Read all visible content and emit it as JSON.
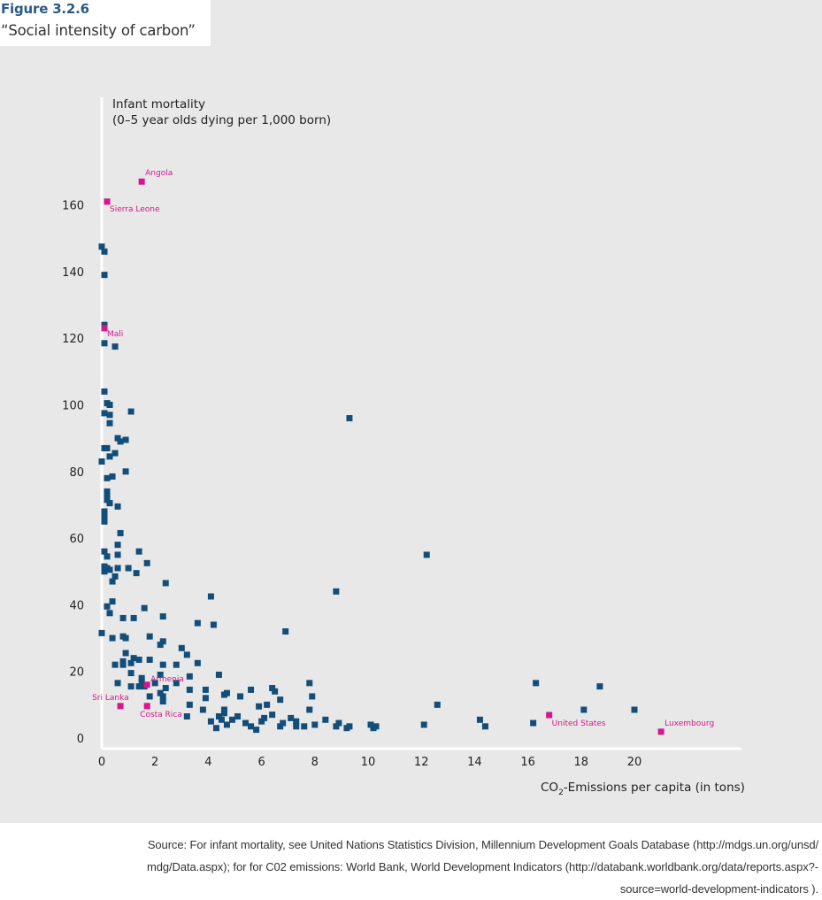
{
  "figure": {
    "number": "Figure 3.2.6",
    "title": "“Social intensity of carbon”"
  },
  "source": {
    "line1": "Source: For infant mortality, see United Nations Statistics Division, Millennium Development Goals Database (http://mdgs.un.org/unsd/",
    "line2": "mdg/Data.aspx); for for C02 emissions: World Bank, World Development Indicators (http://databank.worldbank.org/data/reports.aspx?-",
    "line3": "source=world-development-indicators )."
  },
  "colors": {
    "default_point": "#134e7a",
    "highlight_point": "#d7168c",
    "panel": "#e8e8e8",
    "axis": "#ffffff"
  },
  "chart_data": {
    "type": "scatter",
    "title": "“Social intensity of carbon”",
    "ylabel_line1": "Infant mortality",
    "ylabel_line2": "(0–5 year olds dying per 1,000 born)",
    "xlabel_pre": "CO",
    "xlabel_sub": "2",
    "xlabel_post": "-Emissions per capita (in tons)",
    "xlim": [
      0,
      24
    ],
    "ylim": [
      0,
      180
    ],
    "xticks": [
      0,
      2,
      4,
      6,
      8,
      10,
      12,
      14,
      16,
      18,
      20
    ],
    "yticks": [
      0,
      20,
      40,
      60,
      80,
      100,
      120,
      140,
      160
    ],
    "grid": false,
    "highlighted": [
      {
        "name": "Angola",
        "x": 1.5,
        "y": 167
      },
      {
        "name": "Sierra Leone",
        "x": 0.2,
        "y": 161
      },
      {
        "name": "Mali",
        "x": 0.1,
        "y": 123
      },
      {
        "name": "Armenia",
        "x": 1.7,
        "y": 16
      },
      {
        "name": "Sri Lanka",
        "x": 0.7,
        "y": 9.6
      },
      {
        "name": "Costa Rica",
        "x": 1.7,
        "y": 9.6
      },
      {
        "name": "United States",
        "x": 16.8,
        "y": 6.9
      },
      {
        "name": "Luxembourg",
        "x": 21.0,
        "y": 1.9
      }
    ],
    "points": [
      [
        0.0,
        147.5
      ],
      [
        0.1,
        146
      ],
      [
        0.1,
        139
      ],
      [
        0.1,
        124
      ],
      [
        0.1,
        118.5
      ],
      [
        0.5,
        117.5
      ],
      [
        0.1,
        104
      ],
      [
        0.2,
        100.5
      ],
      [
        0.3,
        100
      ],
      [
        0.1,
        97.5
      ],
      [
        0.3,
        97
      ],
      [
        1.1,
        98
      ],
      [
        0.3,
        94.5
      ],
      [
        0.6,
        90
      ],
      [
        0.7,
        89
      ],
      [
        0.9,
        89.5
      ],
      [
        0.1,
        87
      ],
      [
        0.2,
        87
      ],
      [
        0.5,
        85.5
      ],
      [
        0.3,
        84.5
      ],
      [
        0.0,
        83
      ],
      [
        0.9,
        80
      ],
      [
        0.2,
        78
      ],
      [
        0.4,
        78.5
      ],
      [
        0.2,
        74
      ],
      [
        0.2,
        73
      ],
      [
        0.2,
        71.5
      ],
      [
        0.3,
        70.5
      ],
      [
        0.6,
        69.5
      ],
      [
        0.1,
        68
      ],
      [
        0.1,
        66.5
      ],
      [
        0.1,
        65
      ],
      [
        0.7,
        61.5
      ],
      [
        0.6,
        58
      ],
      [
        0.1,
        56
      ],
      [
        0.6,
        55
      ],
      [
        1.4,
        56
      ],
      [
        0.2,
        54.5
      ],
      [
        1.7,
        52.5
      ],
      [
        0.1,
        51.5
      ],
      [
        0.2,
        51
      ],
      [
        0.3,
        50.5
      ],
      [
        0.6,
        51
      ],
      [
        1.0,
        51
      ],
      [
        0.1,
        50
      ],
      [
        1.3,
        49.5
      ],
      [
        0.5,
        48.5
      ],
      [
        0.4,
        47
      ],
      [
        2.4,
        46.5
      ],
      [
        4.1,
        42.5
      ],
      [
        8.8,
        44
      ],
      [
        12.2,
        55
      ],
      [
        9.3,
        96
      ],
      [
        0.4,
        41
      ],
      [
        0.2,
        39.5
      ],
      [
        1.6,
        39
      ],
      [
        0.3,
        37.5
      ],
      [
        0.8,
        36
      ],
      [
        1.2,
        36
      ],
      [
        2.3,
        36.5
      ],
      [
        3.6,
        34.5
      ],
      [
        4.2,
        34
      ],
      [
        0.0,
        31.5
      ],
      [
        0.8,
        30.5
      ],
      [
        0.4,
        30
      ],
      [
        0.9,
        30
      ],
      [
        1.8,
        30.5
      ],
      [
        6.9,
        32
      ],
      [
        2.2,
        28
      ],
      [
        2.3,
        29
      ],
      [
        3.0,
        27
      ],
      [
        0.9,
        25.5
      ],
      [
        3.2,
        25
      ],
      [
        1.2,
        24
      ],
      [
        1.4,
        23.5
      ],
      [
        1.8,
        23.5
      ],
      [
        0.8,
        23
      ],
      [
        1.1,
        22.5
      ],
      [
        0.5,
        22
      ],
      [
        0.8,
        22
      ],
      [
        2.3,
        22
      ],
      [
        2.8,
        22
      ],
      [
        3.6,
        22.5
      ],
      [
        1.1,
        19.5
      ],
      [
        2.2,
        19
      ],
      [
        3.3,
        18.5
      ],
      [
        4.4,
        19
      ],
      [
        1.5,
        18
      ],
      [
        1.5,
        17
      ],
      [
        2.0,
        16.5
      ],
      [
        2.8,
        16.5
      ],
      [
        0.6,
        16.5
      ],
      [
        1.1,
        15.5
      ],
      [
        1.4,
        15.5
      ],
      [
        1.6,
        15.5
      ],
      [
        2.4,
        15
      ],
      [
        3.3,
        14.5
      ],
      [
        3.9,
        14.5
      ],
      [
        5.6,
        14.5
      ],
      [
        6.4,
        15
      ],
      [
        6.5,
        14
      ],
      [
        7.8,
        16.5
      ],
      [
        2.2,
        13.5
      ],
      [
        2.3,
        12.5
      ],
      [
        3.9,
        12
      ],
      [
        4.6,
        13
      ],
      [
        4.7,
        13.5
      ],
      [
        5.2,
        12.5
      ],
      [
        6.7,
        11.5
      ],
      [
        7.9,
        12.5
      ],
      [
        1.8,
        12.5
      ],
      [
        2.3,
        11
      ],
      [
        3.3,
        10
      ],
      [
        5.9,
        9.5
      ],
      [
        6.2,
        10
      ],
      [
        7.8,
        8.5
      ],
      [
        3.8,
        8.5
      ],
      [
        4.6,
        8.5
      ],
      [
        4.6,
        7.5
      ],
      [
        3.2,
        6.5
      ],
      [
        4.4,
        6.5
      ],
      [
        5.1,
        6.5
      ],
      [
        6.1,
        6
      ],
      [
        6.4,
        7
      ],
      [
        7.1,
        6
      ],
      [
        4.1,
        5
      ],
      [
        4.5,
        5.5
      ],
      [
        4.9,
        5.5
      ],
      [
        5.4,
        4.5
      ],
      [
        6.0,
        5
      ],
      [
        6.8,
        4.5
      ],
      [
        7.3,
        5
      ],
      [
        8.0,
        4
      ],
      [
        8.4,
        5.5
      ],
      [
        8.9,
        4.5
      ],
      [
        9.3,
        3.5
      ],
      [
        10.1,
        4
      ],
      [
        4.3,
        3
      ],
      [
        4.7,
        4
      ],
      [
        5.6,
        3.5
      ],
      [
        5.8,
        2.5
      ],
      [
        6.7,
        3.5
      ],
      [
        7.3,
        3.5
      ],
      [
        7.6,
        3.5
      ],
      [
        8.8,
        3.5
      ],
      [
        9.2,
        3
      ],
      [
        10.2,
        3
      ],
      [
        10.3,
        3.5
      ],
      [
        12.1,
        4
      ],
      [
        12.6,
        10
      ],
      [
        14.2,
        5.5
      ],
      [
        14.4,
        3.5
      ],
      [
        16.2,
        4.5
      ],
      [
        16.3,
        16.5
      ],
      [
        18.1,
        8.5
      ],
      [
        18.7,
        15.5
      ],
      [
        20.0,
        8.5
      ]
    ]
  }
}
